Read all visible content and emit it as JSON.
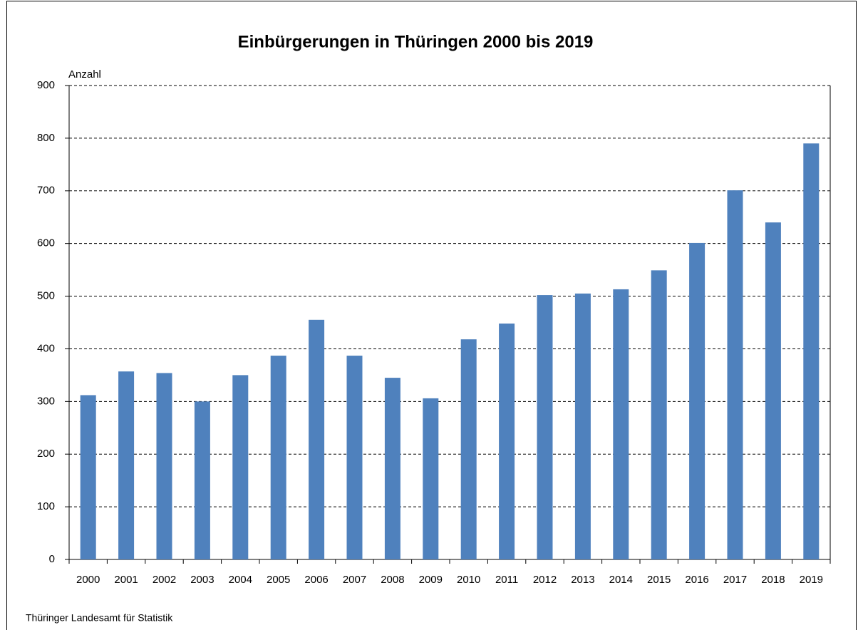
{
  "chart_data": {
    "type": "bar",
    "title": "Einbürgerungen in Thüringen 2000 bis 2019",
    "y_axis_label": "Anzahl",
    "source": "Thüringer Landesamt für Statistik",
    "categories": [
      "2000",
      "2001",
      "2002",
      "2003",
      "2004",
      "2005",
      "2006",
      "2007",
      "2008",
      "2009",
      "2010",
      "2011",
      "2012",
      "2013",
      "2014",
      "2015",
      "2016",
      "2017",
      "2018",
      "2019"
    ],
    "values": [
      312,
      357,
      354,
      300,
      350,
      387,
      455,
      387,
      345,
      306,
      418,
      448,
      502,
      505,
      513,
      549,
      601,
      701,
      640,
      790
    ],
    "color": "#4f81bd",
    "ylim": [
      0,
      900
    ],
    "yticks": [
      0,
      100,
      200,
      300,
      400,
      500,
      600,
      700,
      800,
      900
    ],
    "grid": true
  }
}
